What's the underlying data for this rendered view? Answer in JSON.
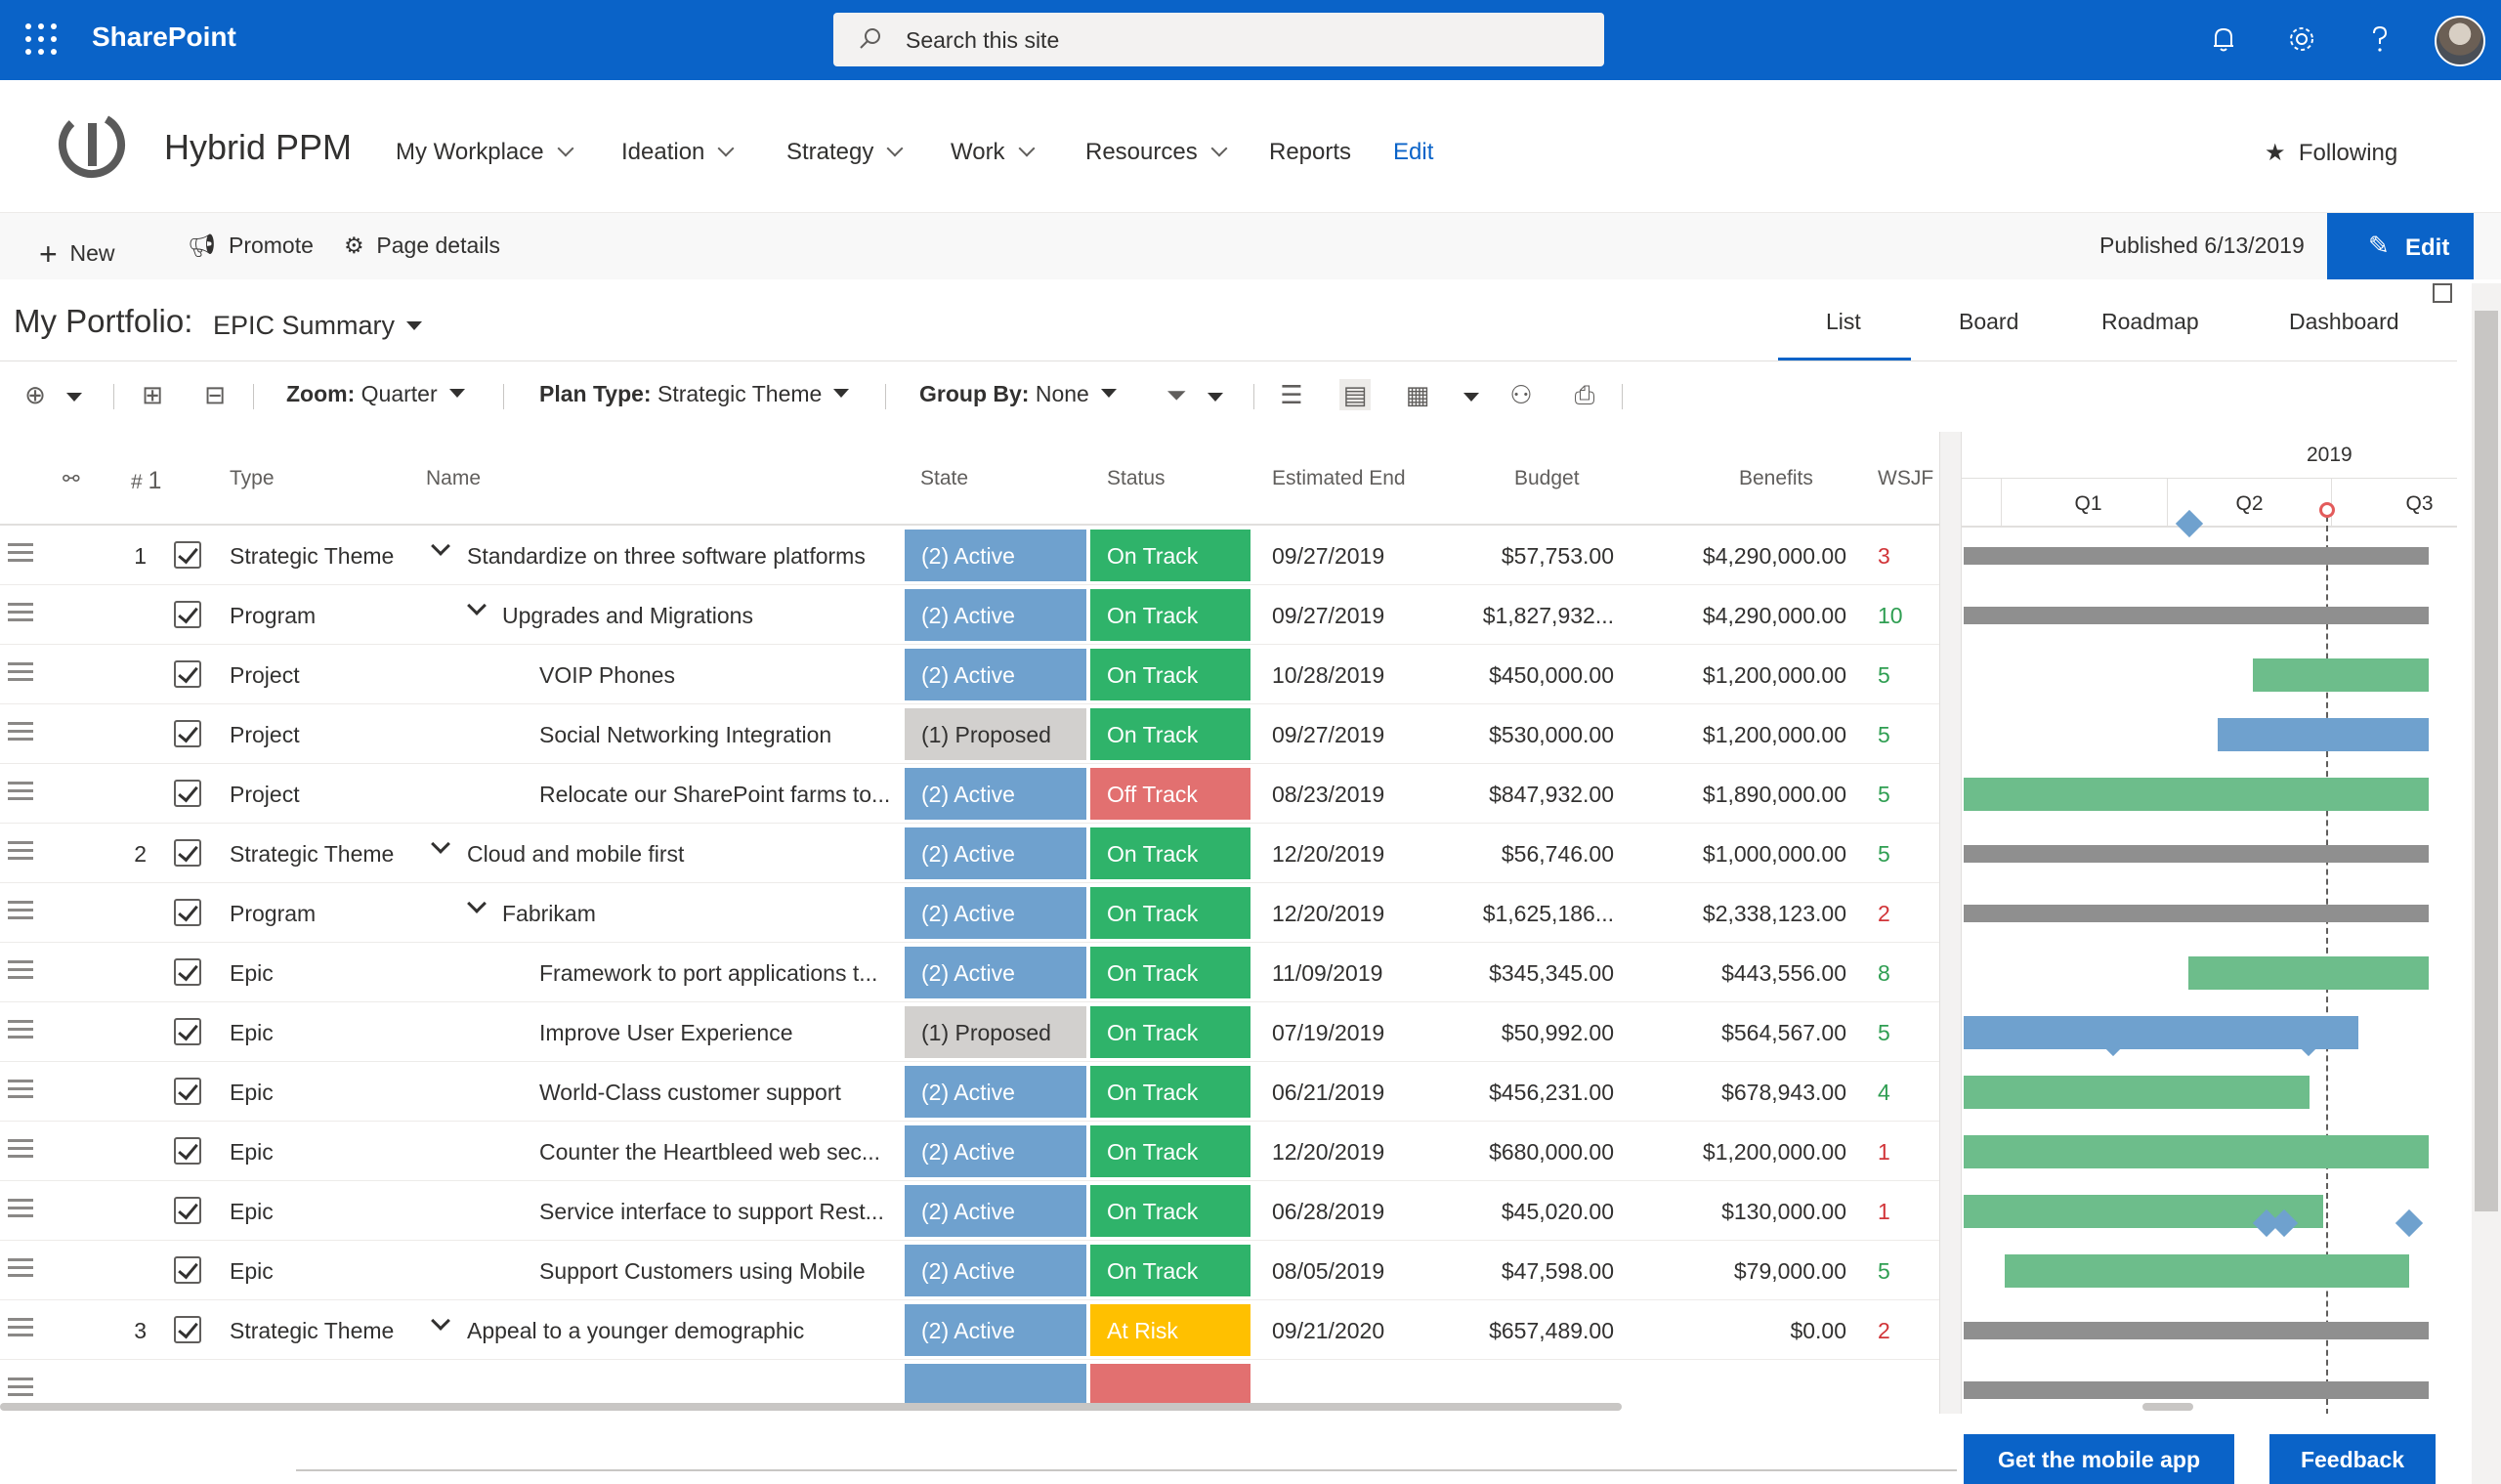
{
  "suite": {
    "brand": "SharePoint",
    "search_placeholder": "Search this site"
  },
  "site": {
    "title": "Hybrid PPM",
    "following": "Following"
  },
  "nav": [
    "My Workplace",
    "Ideation",
    "Strategy",
    "Work",
    "Resources",
    "Reports",
    "Edit"
  ],
  "command_bar": {
    "new": "New",
    "promote": "Promote",
    "page_details": "Page details",
    "published": "Published 6/13/2019",
    "edit": "Edit"
  },
  "portfolio": {
    "label": "My Portfolio:",
    "view": "EPIC Summary"
  },
  "view_tabs": [
    "List",
    "Board",
    "Roadmap",
    "Dashboard"
  ],
  "toolbar": {
    "zoom_label": "Zoom:",
    "zoom_value": "Quarter",
    "plan_label": "Plan Type:",
    "plan_value": "Strategic Theme",
    "group_label": "Group By:",
    "group_value": "None"
  },
  "columns": {
    "num": "#",
    "sort": "1",
    "type": "Type",
    "name": "Name",
    "state": "State",
    "status": "Status",
    "end": "Estimated End",
    "budget": "Budget",
    "benefits": "Benefits",
    "wsjf": "WSJF"
  },
  "rows": [
    {
      "num": "1",
      "type": "Strategic Theme",
      "name": "Standardize on three software platforms",
      "state": "(2) Active",
      "status": "On Track",
      "end": "09/27/2019",
      "budget": "$57,753.00",
      "benefits": "$4,290,000.00",
      "wsjf": "3"
    },
    {
      "num": "",
      "type": "Program",
      "name": "Upgrades and Migrations",
      "state": "(2) Active",
      "status": "On Track",
      "end": "09/27/2019",
      "budget": "$1,827,932...",
      "benefits": "$4,290,000.00",
      "wsjf": "10"
    },
    {
      "num": "",
      "type": "Project",
      "name": "VOIP Phones",
      "state": "(2) Active",
      "status": "On Track",
      "end": "10/28/2019",
      "budget": "$450,000.00",
      "benefits": "$1,200,000.00",
      "wsjf": "5"
    },
    {
      "num": "",
      "type": "Project",
      "name": "Social Networking Integration",
      "state": "(1) Proposed",
      "status": "On Track",
      "end": "09/27/2019",
      "budget": "$530,000.00",
      "benefits": "$1,200,000.00",
      "wsjf": "5"
    },
    {
      "num": "",
      "type": "Project",
      "name": "Relocate our SharePoint farms to...",
      "state": "(2) Active",
      "status": "Off Track",
      "end": "08/23/2019",
      "budget": "$847,932.00",
      "benefits": "$1,890,000.00",
      "wsjf": "5"
    },
    {
      "num": "2",
      "type": "Strategic Theme",
      "name": "Cloud and mobile first",
      "state": "(2) Active",
      "status": "On Track",
      "end": "12/20/2019",
      "budget": "$56,746.00",
      "benefits": "$1,000,000.00",
      "wsjf": "5"
    },
    {
      "num": "",
      "type": "Program",
      "name": "Fabrikam",
      "state": "(2) Active",
      "status": "On Track",
      "end": "12/20/2019",
      "budget": "$1,625,186...",
      "benefits": "$2,338,123.00",
      "wsjf": "2"
    },
    {
      "num": "",
      "type": "Epic",
      "name": "Framework to port applications t...",
      "state": "(2) Active",
      "status": "On Track",
      "end": "11/09/2019",
      "budget": "$345,345.00",
      "benefits": "$443,556.00",
      "wsjf": "8"
    },
    {
      "num": "",
      "type": "Epic",
      "name": "Improve User Experience",
      "state": "(1) Proposed",
      "status": "On Track",
      "end": "07/19/2019",
      "budget": "$50,992.00",
      "benefits": "$564,567.00",
      "wsjf": "5"
    },
    {
      "num": "",
      "type": "Epic",
      "name": "World-Class customer support",
      "state": "(2) Active",
      "status": "On Track",
      "end": "06/21/2019",
      "budget": "$456,231.00",
      "benefits": "$678,943.00",
      "wsjf": "4"
    },
    {
      "num": "",
      "type": "Epic",
      "name": "Counter the Heartbleed web sec...",
      "state": "(2) Active",
      "status": "On Track",
      "end": "12/20/2019",
      "budget": "$680,000.00",
      "benefits": "$1,200,000.00",
      "wsjf": "1"
    },
    {
      "num": "",
      "type": "Epic",
      "name": "Service interface to support Rest...",
      "state": "(2) Active",
      "status": "On Track",
      "end": "06/28/2019",
      "budget": "$45,020.00",
      "benefits": "$130,000.00",
      "wsjf": "1"
    },
    {
      "num": "",
      "type": "Epic",
      "name": "Support Customers using Mobile",
      "state": "(2) Active",
      "status": "On Track",
      "end": "08/05/2019",
      "budget": "$47,598.00",
      "benefits": "$79,000.00",
      "wsjf": "5"
    },
    {
      "num": "3",
      "type": "Strategic Theme",
      "name": "Appeal to a younger demographic",
      "state": "(2) Active",
      "status": "At Risk",
      "end": "09/21/2020",
      "budget": "$657,489.00",
      "benefits": "$0.00",
      "wsjf": "2"
    }
  ],
  "gantt": {
    "year": "2019",
    "quarters": [
      "Q1",
      "Q2",
      "Q3"
    ]
  },
  "footer": {
    "mobile_app": "Get the mobile app",
    "feedback": "Feedback"
  },
  "colors": {
    "accent": "#0a63c8",
    "active": "#6fa1ce",
    "proposed": "#d2d0ce",
    "on_track": "#2fb36a",
    "off_track": "#e27070",
    "at_risk": "#ffc000"
  }
}
